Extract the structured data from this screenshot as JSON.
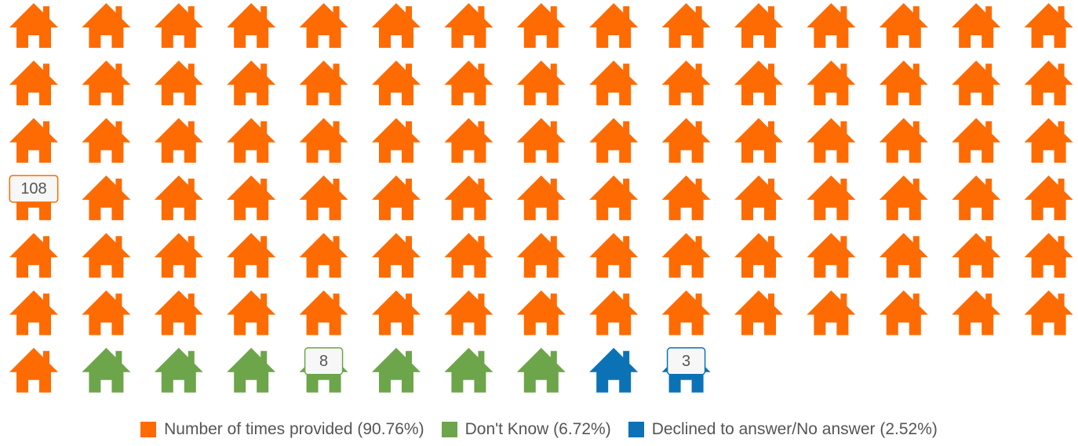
{
  "chart_data": {
    "type": "pictogram",
    "series": [
      {
        "name": "Number of times provided (90.76%)",
        "color": "#fd6b02",
        "values": [
          108
        ]
      },
      {
        "name": "Don't Know (6.72%)",
        "color": "#6da54a",
        "values": [
          8
        ]
      },
      {
        "name": "Declined to answer/No answer (2.52%)",
        "color": "#0b72b6",
        "values": [
          3
        ]
      }
    ]
  }
}
